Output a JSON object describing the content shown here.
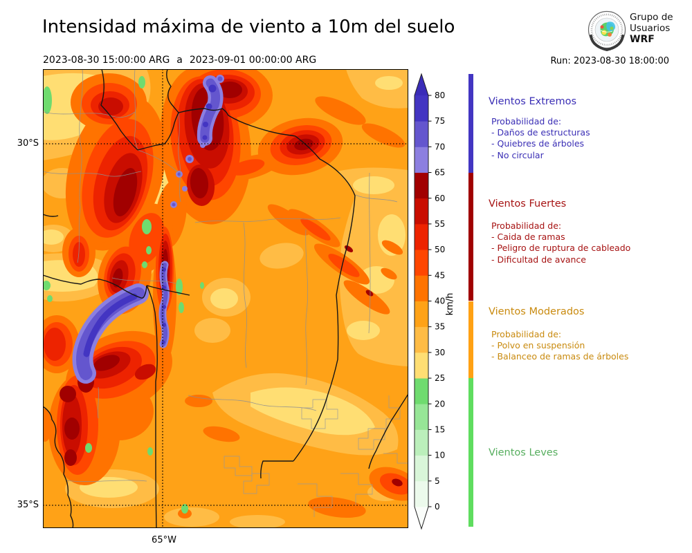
{
  "header": {
    "title": "Intensidad máxima de viento a 10m del suelo",
    "period": {
      "start": "2023-08-30 15:00:00 ARG",
      "sep": "a",
      "end": "2023-09-01 00:00:00 ARG"
    },
    "run": "Run: 2023-08-30 18:00:00",
    "logo": {
      "org_line1": "Grupo de",
      "org_line2": "Usuarios",
      "org_line3": "WRF"
    }
  },
  "map": {
    "lat_labels": [
      "30°S",
      "35°S"
    ],
    "lon_label": "65°W"
  },
  "colorbar": {
    "units": "km/h",
    "ticks": [
      0,
      5,
      10,
      15,
      20,
      25,
      30,
      35,
      40,
      45,
      50,
      55,
      60,
      65,
      70,
      75,
      80
    ],
    "segment_colors_bottom_to_top": [
      "#ECFAEC",
      "#D9F6D9",
      "#BBEFBB",
      "#97E697",
      "#6FDB6F",
      "#FFDE73",
      "#FFBC45",
      "#FFA217",
      "#FF7300",
      "#FF4600",
      "#ED2300",
      "#C90D00",
      "#A10000",
      "#8C7FE0",
      "#6456CE",
      "#4335C2"
    ],
    "over_color": "#3A2CB8",
    "under_color": "#FAFDFA"
  },
  "categories": [
    {
      "name": "Vientos Extremos",
      "color": "#3A2EB5",
      "bar_color": "#4335C2",
      "range_kmh": [
        65,
        84.2
      ],
      "prob_title": "Probabilidad de:",
      "items": [
        "- Daños de estructuras",
        "- Quiebres de árboles",
        "- No circular"
      ]
    },
    {
      "name": "Vientos Fuertes",
      "color": "#A61212",
      "bar_color": "#A00000",
      "range_kmh": [
        40,
        65
      ],
      "prob_title": "Probabilidad de:",
      "items": [
        "- Caida de ramas",
        "- Peligro de ruptura de cableado",
        "- Dificultad de avance"
      ]
    },
    {
      "name": "Vientos Moderados",
      "color": "#C98A0E",
      "bar_color": "#FFA114",
      "range_kmh": [
        25,
        40
      ],
      "prob_title": "Probabilidad de:",
      "items": [
        "- Polvo en suspensión",
        "- Balanceo de ramas de árboles"
      ]
    },
    {
      "name": "Vientos Leves",
      "color": "#56AE5E",
      "bar_color": "#5FDD5F",
      "range_kmh": [
        -3.85,
        25
      ],
      "prob_title": "",
      "items": []
    }
  ],
  "chart_data": {
    "type": "filled_contour_map",
    "title": "Intensidad máxima de viento a 10m del suelo",
    "units": "km/h",
    "scale_ticks_kmh": [
      0,
      5,
      10,
      15,
      20,
      25,
      30,
      35,
      40,
      45,
      50,
      55,
      60,
      65,
      70,
      75,
      80
    ],
    "graticule": {
      "lat": [
        "30°S",
        "35°S"
      ],
      "lon": [
        "65°W"
      ]
    },
    "category_ranges_kmh": {
      "Vientos Leves": [
        0,
        25
      ],
      "Vientos Moderados": [
        25,
        40
      ],
      "Vientos Fuertes": [
        40,
        65
      ],
      "Vientos Extremos": [
        65,
        80
      ]
    }
  }
}
